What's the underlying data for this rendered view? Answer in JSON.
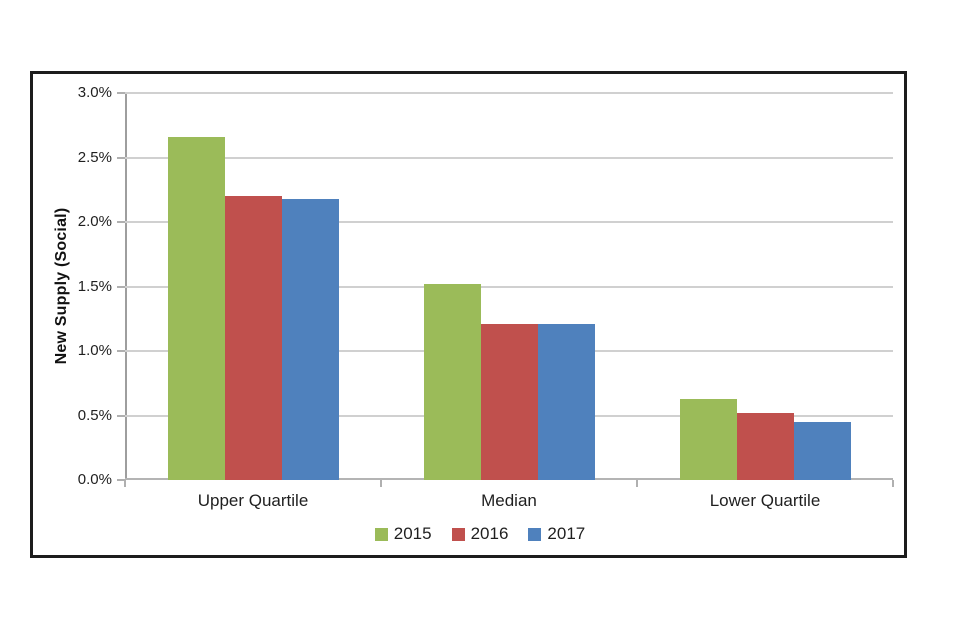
{
  "chart_data": {
    "type": "bar",
    "title": "",
    "categories": [
      "Upper Quartile",
      "Median",
      "Lower Quartile"
    ],
    "series": [
      {
        "name": "2015",
        "color": "#9BBB59",
        "values": [
          2.66,
          1.52,
          0.63
        ]
      },
      {
        "name": "2016",
        "color": "#C0504D",
        "values": [
          2.2,
          1.21,
          0.52
        ]
      },
      {
        "name": "2017",
        "color": "#4F81BD",
        "values": [
          2.18,
          1.21,
          0.45
        ]
      }
    ],
    "xlabel": "",
    "ylabel": "New Supply (Social)",
    "ylim": [
      0,
      3.0
    ],
    "ytick_step": 0.5,
    "yticks": [
      {
        "value": 0.0,
        "label": "0.0%"
      },
      {
        "value": 0.5,
        "label": "0.5%"
      },
      {
        "value": 1.0,
        "label": "1.0%"
      },
      {
        "value": 1.5,
        "label": "1.5%"
      },
      {
        "value": 2.0,
        "label": "2.0%"
      },
      {
        "value": 2.5,
        "label": "2.5%"
      },
      {
        "value": 3.0,
        "label": "3.0%"
      }
    ],
    "grid": true,
    "legend_position": "bottom",
    "colors": {
      "frame_border": "#1c1c1c",
      "gridline": "#d0d0d0",
      "axis": "#9e9e9e",
      "text": "#1f1f1f",
      "background": "#ffffff"
    }
  }
}
